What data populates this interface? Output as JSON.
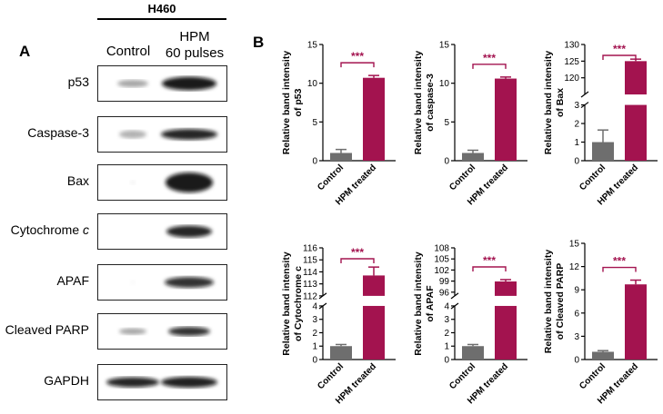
{
  "panel_a": {
    "letter": "A",
    "cell_line": "H460",
    "columns": [
      "Control",
      "HPM",
      "60 pulses"
    ],
    "rows": [
      {
        "label": "p53",
        "italic_suffix": ""
      },
      {
        "label": "Caspase-3",
        "italic_suffix": ""
      },
      {
        "label": "Bax",
        "italic_suffix": ""
      },
      {
        "label": "Cytochrome ",
        "italic_suffix": "c"
      },
      {
        "label": "APAF",
        "italic_suffix": ""
      },
      {
        "label": "Cleaved PARP",
        "italic_suffix": ""
      },
      {
        "label": "GAPDH",
        "italic_suffix": ""
      }
    ]
  },
  "panel_b": {
    "letter": "B",
    "colors": {
      "control": "#6e6e6e",
      "treated": "#a3134f",
      "sig": "#a3134f"
    }
  },
  "chart_data": [
    {
      "type": "bar",
      "categories": [
        "Control",
        "HPM treated"
      ],
      "values": [
        1.0,
        10.7
      ],
      "errors": [
        0.45,
        0.3
      ],
      "ylabel": [
        "Relative band intensity",
        "of p53"
      ],
      "ylim": [
        0,
        15
      ],
      "yticks": [
        "0",
        "5",
        "10",
        "15"
      ],
      "significance": "***"
    },
    {
      "type": "bar",
      "categories": [
        "Control",
        "HPM treated"
      ],
      "values": [
        1.0,
        10.6
      ],
      "errors": [
        0.35,
        0.2
      ],
      "ylabel": [
        "Relative band intensity",
        "of caspase-3"
      ],
      "ylim": [
        0,
        15
      ],
      "yticks": [
        "0",
        "5",
        "10",
        "15"
      ],
      "significance": "***"
    },
    {
      "type": "bar",
      "categories": [
        "Control",
        "HPM treated"
      ],
      "values": [
        1.0,
        125.0
      ],
      "errors": [
        0.65,
        0.6
      ],
      "ylabel": [
        "Relative band intensity",
        "of Bax"
      ],
      "broken_axis": true,
      "lower_range": [
        0,
        3
      ],
      "upper_range": [
        115,
        130
      ],
      "lower_ticks": [
        "0",
        "1",
        "2",
        "3"
      ],
      "upper_ticks": [
        "120",
        "125",
        "130"
      ],
      "significance": "***"
    },
    {
      "type": "bar",
      "categories": [
        "Control",
        "HPM treated"
      ],
      "values": [
        1.0,
        113.7
      ],
      "errors": [
        0.12,
        0.7
      ],
      "ylabel": [
        "Relative band intensity",
        "of Cytochrome c"
      ],
      "broken_axis": true,
      "lower_range": [
        0,
        4
      ],
      "upper_range": [
        112,
        116
      ],
      "lower_ticks": [
        "0",
        "1",
        "2",
        "3",
        "4"
      ],
      "upper_ticks": [
        "112",
        "113",
        "114",
        "115",
        "116"
      ],
      "significance": "***"
    },
    {
      "type": "bar",
      "categories": [
        "Control",
        "HPM treated"
      ],
      "values": [
        1.0,
        98.9
      ],
      "errors": [
        0.12,
        0.5
      ],
      "ylabel": [
        "Relative band intensity",
        "of APAF"
      ],
      "broken_axis": true,
      "lower_range": [
        0,
        4
      ],
      "upper_range": [
        95,
        108
      ],
      "lower_ticks": [
        "0",
        "1",
        "2",
        "3",
        "4"
      ],
      "upper_ticks": [
        "96",
        "99",
        "102",
        "105",
        "108"
      ],
      "significance": "***"
    },
    {
      "type": "bar",
      "categories": [
        "Control",
        "HPM treated"
      ],
      "values": [
        1.0,
        9.7
      ],
      "errors": [
        0.15,
        0.55
      ],
      "ylabel": [
        "Relative band intensity",
        "of Cleaved PARP"
      ],
      "ylim": [
        0,
        15
      ],
      "yticks": [
        "0",
        "3",
        "6",
        "9",
        "12",
        "15"
      ],
      "significance": "***"
    }
  ]
}
